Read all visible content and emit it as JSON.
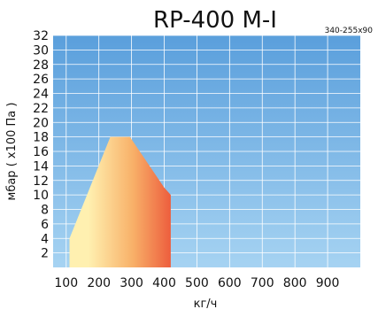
{
  "chart_data": {
    "type": "area",
    "title": "RP-400 M-I",
    "model_code": "340-255x90",
    "xlabel": "кг/ч",
    "ylabel": "мбар ( x100 Па )",
    "xlim": [
      60,
      1000
    ],
    "ylim": [
      0,
      32
    ],
    "x_ticks": [
      100,
      200,
      300,
      400,
      500,
      600,
      700,
      800,
      900
    ],
    "y_ticks": [
      2,
      4,
      6,
      8,
      10,
      12,
      14,
      16,
      18,
      20,
      22,
      24,
      26,
      28,
      30,
      32
    ],
    "grid": true,
    "background_gradient": [
      "#5a9fdc",
      "#a6d3f2"
    ],
    "region_gradient": [
      "#fff0b0",
      "#f8b068",
      "#e8392a"
    ],
    "region": [
      {
        "x": 110,
        "y": 0
      },
      {
        "x": 110,
        "y": 4
      },
      {
        "x": 235,
        "y": 18
      },
      {
        "x": 295,
        "y": 18
      },
      {
        "x": 400,
        "y": 11
      },
      {
        "x": 420,
        "y": 10
      },
      {
        "x": 420,
        "y": 0
      }
    ]
  }
}
